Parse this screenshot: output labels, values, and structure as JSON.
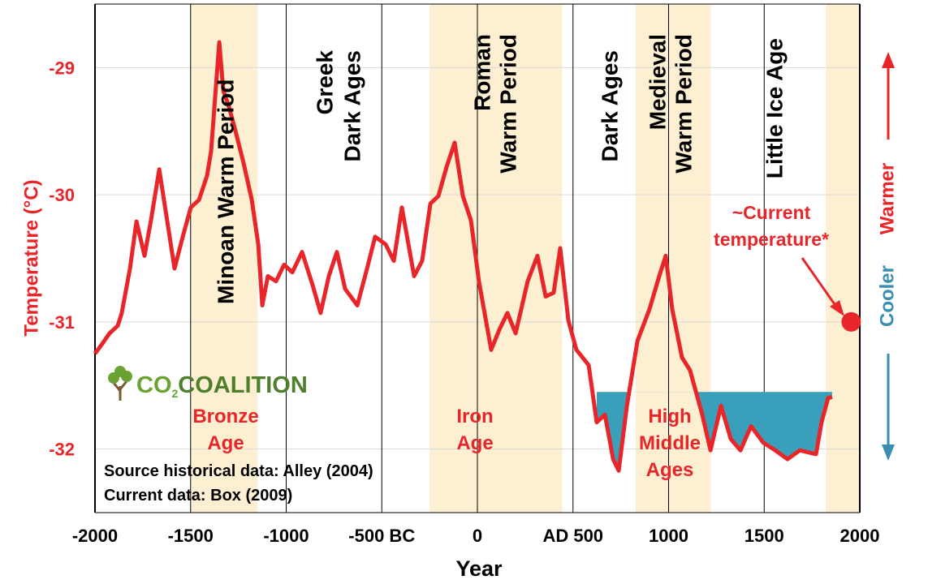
{
  "chart_data": {
    "type": "line",
    "x_label": "Year",
    "y_label": "Temperature  (°C)",
    "x": [
      -2000,
      -1966,
      -1924,
      -1881,
      -1860,
      -1817,
      -1783,
      -1741,
      -1707,
      -1664,
      -1626,
      -1584,
      -1541,
      -1499,
      -1456,
      -1414,
      -1393,
      -1372,
      -1350,
      -1329,
      -1299,
      -1265,
      -1223,
      -1180,
      -1146,
      -1125,
      -1096,
      -1053,
      -1011,
      -968,
      -917,
      -862,
      -820,
      -777,
      -735,
      -692,
      -628,
      -577,
      -535,
      -480,
      -437,
      -395,
      -331,
      -289,
      -246,
      -204,
      -161,
      -119,
      -76,
      -34,
      8,
      72,
      115,
      157,
      200,
      263,
      314,
      357,
      399,
      433,
      476,
      518,
      582,
      624,
      667,
      710,
      739,
      782,
      837,
      900,
      951,
      985,
      1019,
      1070,
      1112,
      1176,
      1219,
      1274,
      1325,
      1376,
      1431,
      1495,
      1558,
      1622,
      1686,
      1771,
      1800,
      1834,
      1855
    ],
    "series": [
      {
        "name": "Temperature",
        "color": "#e8262a",
        "values": [
          -31.25,
          -31.18,
          -31.09,
          -31.03,
          -30.93,
          -30.58,
          -30.21,
          -30.48,
          -30.2,
          -29.8,
          -30.17,
          -30.58,
          -30.33,
          -30.1,
          -30.04,
          -29.85,
          -29.66,
          -29.24,
          -28.8,
          -29.18,
          -29.31,
          -29.5,
          -29.75,
          -30.04,
          -30.39,
          -30.87,
          -30.64,
          -30.68,
          -30.55,
          -30.61,
          -30.45,
          -30.71,
          -30.93,
          -30.64,
          -30.45,
          -30.74,
          -30.87,
          -30.58,
          -30.33,
          -30.39,
          -30.52,
          -30.1,
          -30.64,
          -30.52,
          -30.07,
          -30.01,
          -29.78,
          -29.59,
          -30.01,
          -30.2,
          -30.68,
          -31.22,
          -31.06,
          -30.93,
          -31.09,
          -30.68,
          -30.48,
          -30.8,
          -30.77,
          -30.42,
          -30.99,
          -31.22,
          -31.34,
          -31.79,
          -31.73,
          -32.08,
          -32.17,
          -31.66,
          -31.15,
          -30.9,
          -30.64,
          -30.48,
          -30.9,
          -31.28,
          -31.38,
          -31.73,
          -32.01,
          -31.66,
          -31.92,
          -32.01,
          -31.82,
          -31.95,
          -32.01,
          -32.08,
          -32.01,
          -32.04,
          -31.79,
          -31.6,
          -31.59
        ]
      }
    ],
    "current_point": {
      "x": 1955,
      "y": -31.0,
      "color": "#e8262a"
    },
    "highlight": {
      "level": -31.55,
      "x": [
        600,
        1855
      ],
      "color": "#3a9fba"
    },
    "shaded": [
      [
        -1500,
        -1150
      ],
      [
        -250,
        445
      ],
      [
        828,
        1220
      ],
      [
        1822,
        2000
      ]
    ],
    "shade_color": "#fdefd2",
    "xlim": [
      -2000,
      2000
    ],
    "ylim": [
      -32.5,
      -28.5
    ],
    "xticks": [
      -2000,
      -1500,
      -1000,
      {
        "value": -500,
        "label": "-500 BC"
      },
      0,
      {
        "value": 500,
        "label": "AD 500"
      },
      1000,
      1500,
      2000
    ],
    "yticks": [
      -32,
      -31,
      -30,
      -29
    ],
    "grid": true,
    "period_labels": [
      [
        "Minoan  Warm Period"
      ],
      [
        "Greek",
        "Dark Ages"
      ],
      [
        "Roman",
        "Warm Period"
      ],
      [
        "Dark Ages"
      ],
      [
        "Medieval",
        "Warm Period"
      ],
      [
        "Little Ice Age"
      ]
    ],
    "region_labels": [
      [
        "Bronze",
        "Age"
      ],
      [
        "Iron",
        "Age"
      ],
      [
        "High",
        "Middle",
        "Ages"
      ]
    ],
    "current_label": [
      "~Current",
      "temperature*"
    ],
    "side_label": {
      "cooler": "Cooler",
      "warmer": "Warmer"
    },
    "source": [
      "Source historical data: Alley (2004)",
      "Current data: Box (2009)"
    ],
    "logo": {
      "co": "CO",
      "sub": "2",
      "rest": "COALITION"
    }
  }
}
